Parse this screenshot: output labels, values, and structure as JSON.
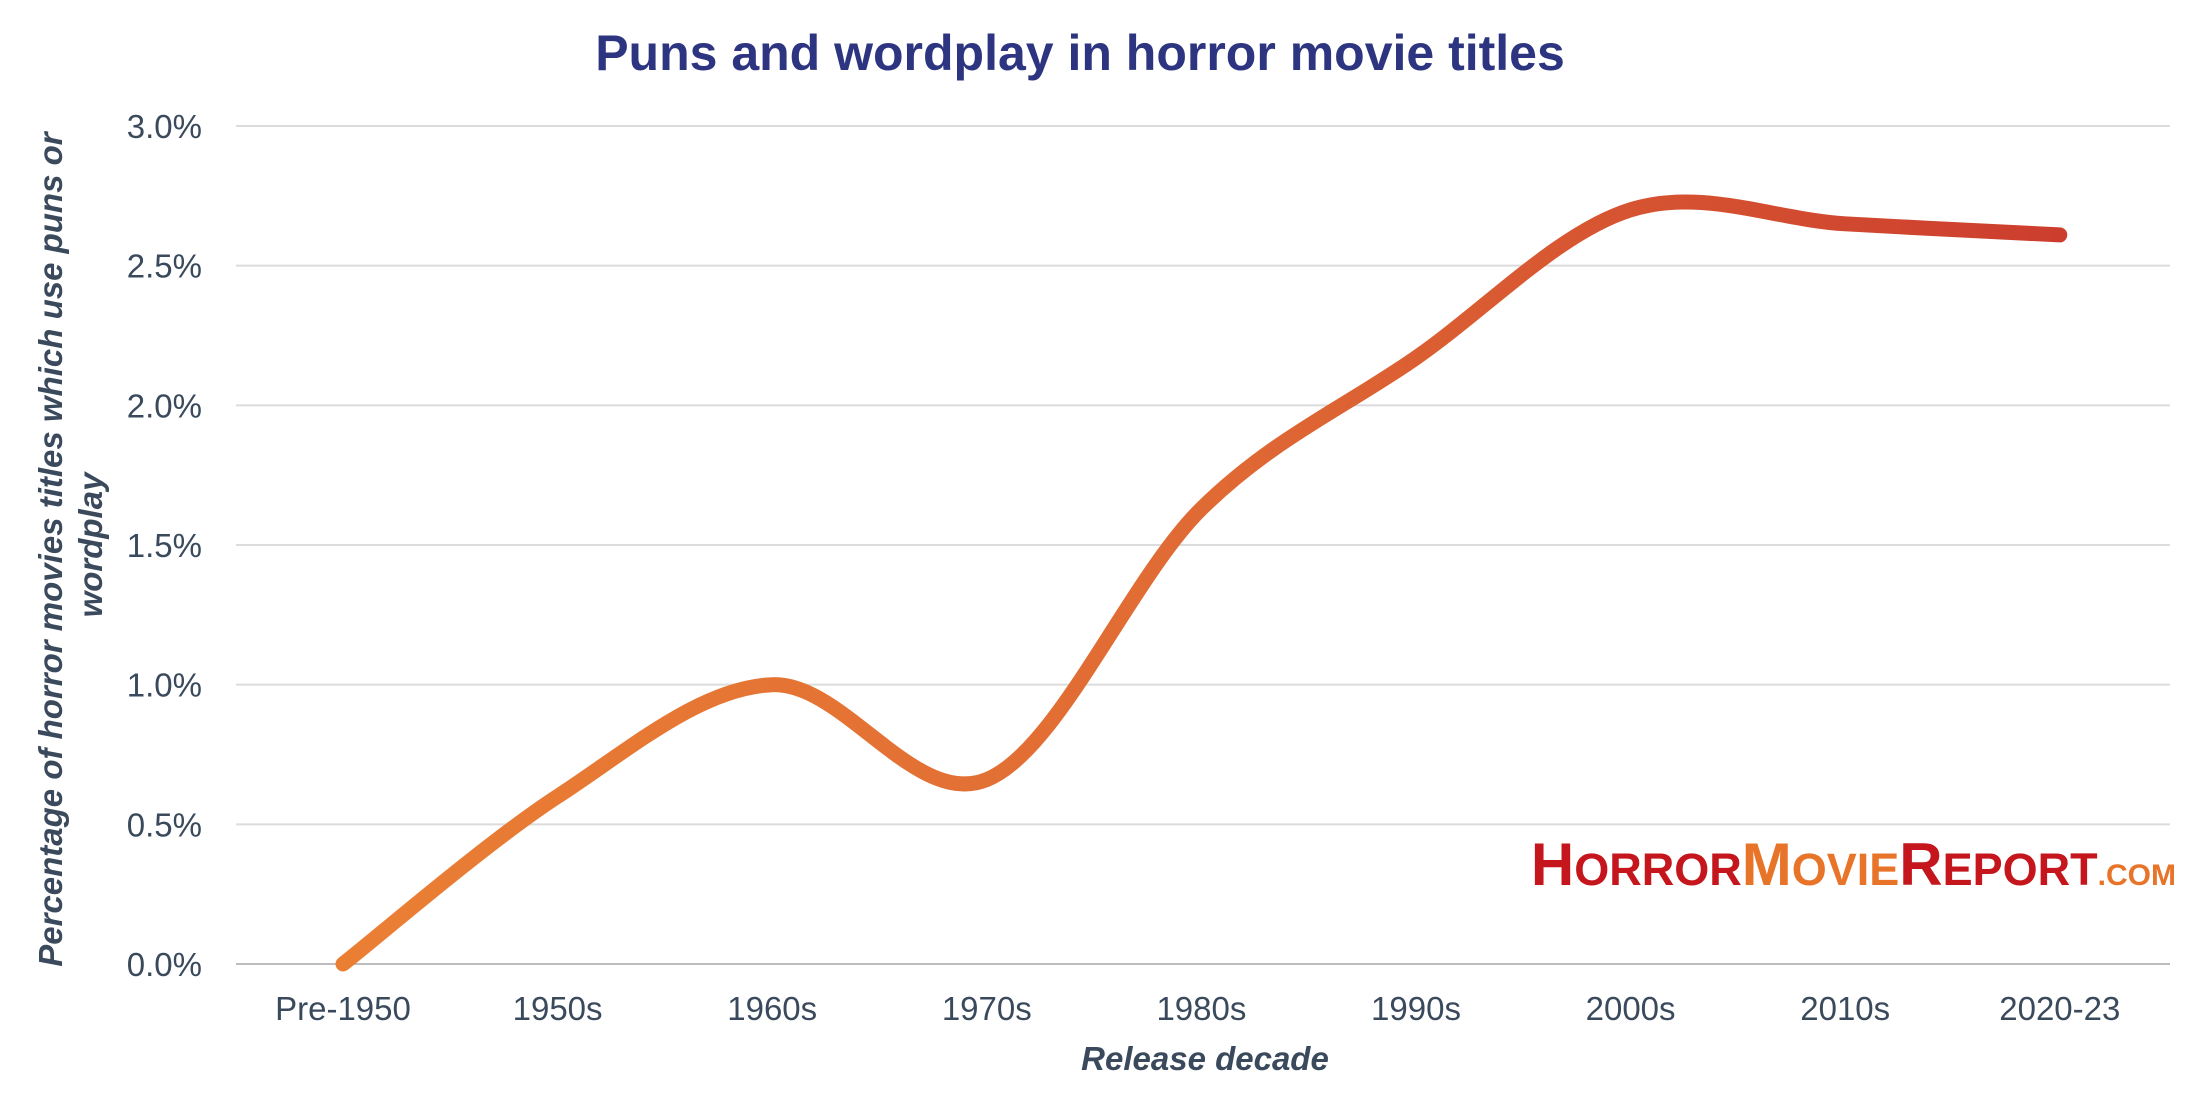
{
  "chart_data": {
    "type": "line",
    "title": "Puns and wordplay in horror movie titles",
    "xlabel": "Release decade",
    "ylabel_lines": [
      "Percentage of horror movies titles which use puns or",
      "wordplay"
    ],
    "categories": [
      "Pre-1950",
      "1950s",
      "1960s",
      "1970s",
      "1980s",
      "1990s",
      "2000s",
      "2010s",
      "2020-23"
    ],
    "values": [
      0.0,
      0.6,
      1.0,
      0.66,
      1.63,
      2.17,
      2.7,
      2.65,
      2.61
    ],
    "ylim": [
      0,
      3.0
    ],
    "yticks": [
      0,
      0.5,
      1.0,
      1.5,
      2.0,
      2.5,
      3.0
    ],
    "ytick_labels": [
      "0.0%",
      "0.5%",
      "1.0%",
      "1.5%",
      "2.0%",
      "2.5%",
      "3.0%"
    ],
    "grid": true,
    "line_gradient": [
      "#ea7f34",
      "#e06a34",
      "#cc3d2e"
    ]
  },
  "logo": {
    "parts": [
      {
        "big": "H",
        "small": "ORROR",
        "color": "#c4161c"
      },
      {
        "big": "M",
        "small": "OVIE",
        "color": "#e8742a"
      },
      {
        "big": "R",
        "small": "EPORT",
        "color": "#c4161c"
      }
    ],
    "com": ".COM",
    "com_color": "#e8742a"
  }
}
